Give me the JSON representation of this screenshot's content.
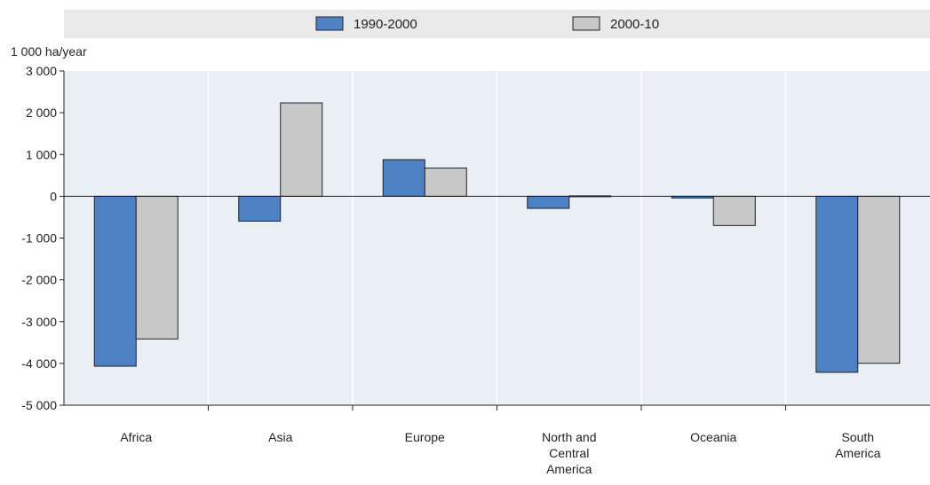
{
  "chart_data": {
    "type": "bar",
    "ylabel": "1 000 ha/year",
    "categories": [
      "Africa",
      "Asia",
      "Europe",
      "North and Central America",
      "Oceania",
      "South America"
    ],
    "category_lines": [
      [
        "Africa"
      ],
      [
        "Asia"
      ],
      [
        "Europe"
      ],
      [
        "North and",
        "Central",
        "America"
      ],
      [
        "Oceania"
      ],
      [
        "South",
        "America"
      ]
    ],
    "series": [
      {
        "name": "1990-2000",
        "color": "#4e81c4",
        "values": [
          -4067,
          -595,
          877,
          -289,
          -41,
          -4213
        ]
      },
      {
        "name": "2000-10",
        "color": "#c8c8c8",
        "values": [
          -3414,
          2235,
          676,
          10,
          -700,
          -3997
        ]
      }
    ],
    "ylim": [
      -5000,
      3000
    ],
    "yticks": [
      3000,
      2000,
      1000,
      0,
      -1000,
      -2000,
      -3000,
      -4000,
      -5000
    ],
    "ytick_labels": [
      "3 000",
      "2 000",
      "1 000",
      "0",
      "-1 000",
      "-2 000",
      "-3 000",
      "-4 000",
      "-5 000"
    ],
    "legend_position": "top",
    "grid": "vertical"
  }
}
